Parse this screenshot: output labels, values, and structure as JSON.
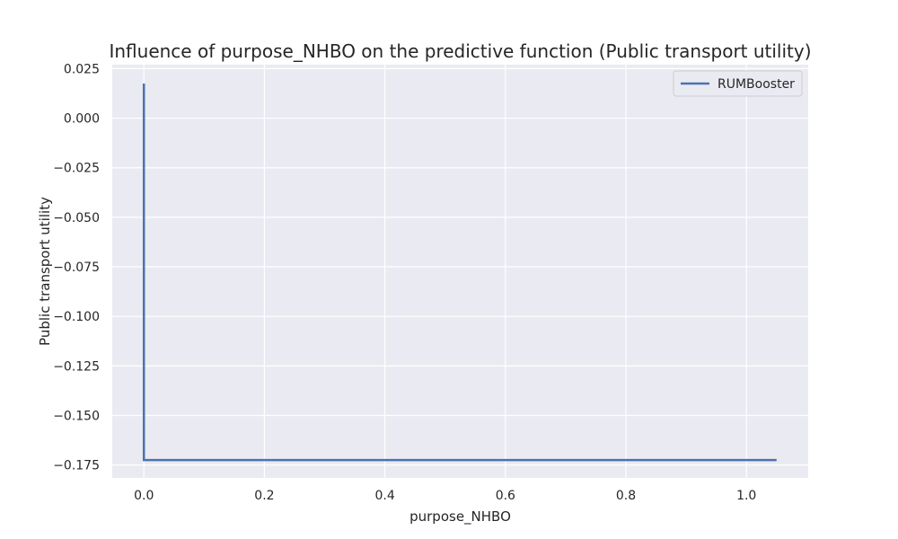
{
  "chart_data": {
    "type": "line",
    "title": "Influence of purpose_NHBO on the predictive function (Public transport utility)",
    "xlabel": "purpose_NHBO",
    "ylabel": "Public transport utility",
    "xlim": [
      -0.0525,
      1.1025
    ],
    "ylim": [
      -0.1815,
      0.027
    ],
    "xticks": [
      0.0,
      0.2,
      0.4,
      0.6,
      0.8,
      1.0
    ],
    "xtick_labels": [
      "0.0",
      "0.2",
      "0.4",
      "0.6",
      "0.8",
      "1.0"
    ],
    "yticks": [
      0.025,
      0.0,
      -0.025,
      -0.05,
      -0.075,
      -0.1,
      -0.125,
      -0.15,
      -0.175
    ],
    "ytick_labels": [
      "0.025",
      "0.000",
      "−0.025",
      "−0.050",
      "−0.075",
      "−0.100",
      "−0.125",
      "−0.150",
      "−0.175"
    ],
    "grid": true,
    "legend_position": "top-right",
    "series": [
      {
        "name": "RUMBooster",
        "color": "#4c72b0",
        "x": [
          0.0,
          0.0,
          1.05
        ],
        "y": [
          0.0175,
          -0.1725,
          -0.1725
        ]
      }
    ]
  }
}
